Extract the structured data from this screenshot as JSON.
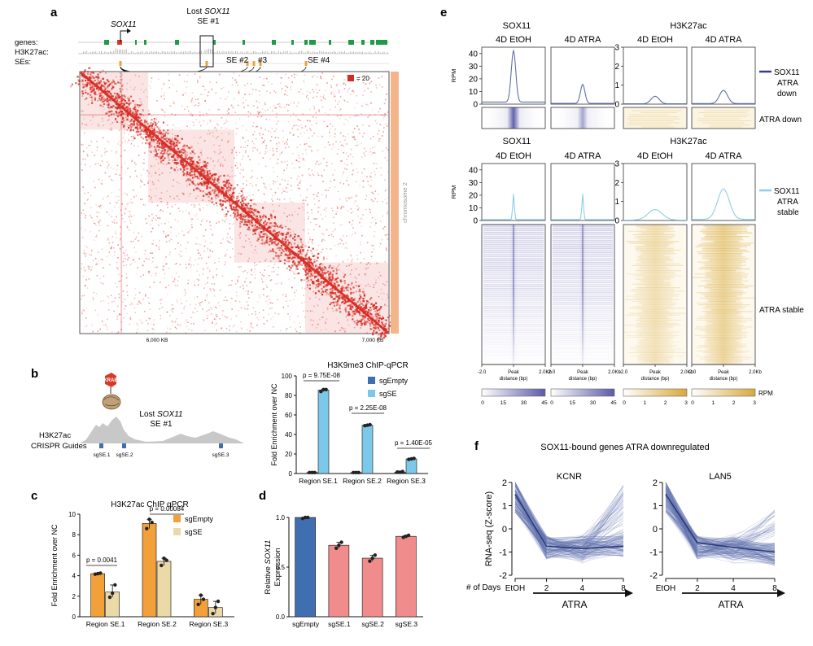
{
  "colors": {
    "hic": "#d62a22",
    "chrom": "#f5b58a",
    "orange": "#f2a03a",
    "tan": "#ecd9a8",
    "blueDark": "#3f6fb0",
    "blueLight": "#7cc8e8",
    "pink": "#f08c8c",
    "purple": "#5a5aa8",
    "lightBlue": "#8fcde8",
    "gold": "#d8a93a",
    "green": "#1f9a4a",
    "krab": "#d83a2a",
    "line": "#5e6fae"
  },
  "panel_a": {
    "letter": "a",
    "gene_label": "SOX11",
    "lost_label_1": "Lost",
    "lost_label_2": "SOX11",
    "lost_label_3": "SE #1",
    "track_labels": [
      "genes:",
      "H3K27ac:",
      "SEs:"
    ],
    "se_labels": [
      "SE #2",
      "#3",
      "SE #4"
    ],
    "legend_value": "= 20",
    "x_ticks": [
      "6,000 KB",
      "7,000 KB"
    ],
    "chromosome_label": "chromosome 2"
  },
  "panel_b": {
    "letter": "b",
    "krab_label": "KRAB",
    "lost_label_1": "Lost",
    "lost_label_2": "SOX11",
    "lost_label_3": "SE #1",
    "h3k27ac_label": "H3K27ac",
    "crispr_label": "CRISPR Guides",
    "guide_labels": [
      "sgSE.1",
      "sgSE.2",
      "sgSE.3"
    ]
  },
  "panel_c": {
    "letter": "c",
    "legend": [
      "sgEmpty",
      "sgSE"
    ]
  },
  "panel_d": {
    "letter": "d"
  },
  "panel_e": {
    "letter": "e",
    "groups": [
      "SOX11",
      "H3K27ac"
    ],
    "conditions": [
      "4D EtOH",
      "4D ATRA"
    ],
    "rpm_label": "RPM",
    "top_legend": [
      "SOX11",
      "ATRA",
      "down"
    ],
    "top_heatmap_label": "ATRA down",
    "bottom_legend": [
      "SOX11",
      "ATRA",
      "stable"
    ],
    "bottom_heatmap_label": "ATRA stable",
    "x_axis_ticks": [
      "-2.0",
      "Peak",
      "2.0Kb"
    ],
    "x_axis_label": "distance (bp)",
    "colorbar_purple_ticks": [
      "0",
      "15",
      "30",
      "45"
    ],
    "colorbar_gold_ticks": [
      "0",
      "1",
      "2",
      "3"
    ],
    "colorbar_unit": "RPM"
  },
  "panel_f": {
    "letter": "f",
    "title": "SOX11-bound genes ATRA downregulated",
    "days_label": "# of Days",
    "atra_label": "ATRA"
  },
  "chart_data": [
    {
      "type": "bar",
      "panel": "b",
      "title": "H3K9me3 ChIP-qPCR",
      "ylabel": "Fold Enrichment over NC",
      "ylim": [
        0,
        100
      ],
      "yticks": [
        0,
        20,
        40,
        60,
        80,
        100
      ],
      "categories": [
        "Region SE.1",
        "Region SE.2",
        "Region SE.3"
      ],
      "series": [
        {
          "name": "sgEmpty",
          "values": [
            1,
            1,
            1.5
          ],
          "points": [
            [
              1,
              1,
              1
            ],
            [
              1,
              1,
              1
            ],
            [
              1.5,
              1.3,
              2
            ]
          ]
        },
        {
          "name": "sgSE",
          "values": [
            85.5,
            49.5,
            15
          ],
          "points": [
            [
              84,
              86,
              86
            ],
            [
              49,
              49.5,
              50
            ],
            [
              14.5,
              15,
              15.5
            ]
          ]
        }
      ],
      "annotations": [
        "p = 9.75E-08",
        "p = 2.25E-08",
        "p = 1.40E-05"
      ],
      "legend_position": "top-right"
    },
    {
      "type": "bar",
      "panel": "c",
      "title": "H3K27ac ChIP qPCR",
      "ylabel": "Fold Enrichment over NC",
      "ylim": [
        0,
        10
      ],
      "yticks": [
        0,
        2,
        4,
        6,
        8,
        10
      ],
      "categories": [
        "Region SE.1",
        "Region SE.2",
        "Region SE.3"
      ],
      "series": [
        {
          "name": "sgEmpty",
          "values": [
            4.2,
            9.1,
            1.7
          ],
          "points": [
            [
              4.15,
              4.2,
              4.25
            ],
            [
              8.6,
              9.5,
              9.2
            ],
            [
              1.2,
              2.1,
              1.7
            ]
          ]
        },
        {
          "name": "sgSE",
          "values": [
            2.4,
            5.4,
            0.9
          ],
          "points": [
            [
              1.9,
              2.3,
              3.1
            ],
            [
              5.0,
              5.7,
              5.5
            ],
            [
              0.3,
              0.9,
              1.5
            ]
          ]
        }
      ],
      "annotations": [
        "p = 0.0041",
        "p = 0.00084"
      ],
      "legend_position": "top-right"
    },
    {
      "type": "bar",
      "panel": "d",
      "ylabel": "Relative SOX11 Expression",
      "ylim": [
        0,
        1
      ],
      "yticks": [
        "0.0",
        "0.5",
        "1.0"
      ],
      "categories": [
        "sgEmpty",
        "sgSE.1",
        "sgSE.2",
        "sgSE.3"
      ],
      "values": [
        1.0,
        0.72,
        0.59,
        0.81
      ],
      "points": [
        [
          0.99,
          1.0,
          1.0
        ],
        [
          0.69,
          0.72,
          0.75
        ],
        [
          0.56,
          0.59,
          0.62
        ],
        [
          0.8,
          0.81,
          0.82
        ]
      ]
    },
    {
      "type": "line",
      "panel": "e",
      "ylim_sox11": [
        0,
        40
      ],
      "yticks_sox11": [
        0,
        10,
        20,
        30,
        40
      ],
      "ylim_h3k27ac": [
        0,
        3
      ],
      "yticks_h3k27ac": [
        0,
        1,
        2,
        3
      ],
      "x": [
        -2000,
        0,
        2000
      ],
      "series": [
        {
          "name": "SOX11 ATRA down",
          "profile": "SOX11",
          "peak": [
            41,
            15
          ]
        },
        {
          "name": "SOX11 ATRA down",
          "profile": "H3K27ac",
          "peak": [
            0.4,
            0.7
          ]
        },
        {
          "name": "SOX11 ATRA stable",
          "profile": "SOX11",
          "peak": [
            20,
            20
          ]
        },
        {
          "name": "SOX11 ATRA stable",
          "profile": "H3K27ac",
          "peak": [
            0.55,
            1.6
          ]
        }
      ]
    },
    {
      "type": "line",
      "panel": "f",
      "ylabel": "RNA-seq (Z-score)",
      "ylim": [
        -2,
        2
      ],
      "yticks": [
        -2,
        -1,
        0,
        1,
        2
      ],
      "x": [
        "EtOH",
        "2",
        "4",
        "8"
      ],
      "series": [
        {
          "name": "KCNR",
          "mean": [
            1.5,
            -0.75,
            -0.85,
            -0.75
          ]
        },
        {
          "name": "LAN5",
          "mean": [
            1.5,
            -0.6,
            -0.8,
            -1.0
          ]
        }
      ]
    }
  ]
}
